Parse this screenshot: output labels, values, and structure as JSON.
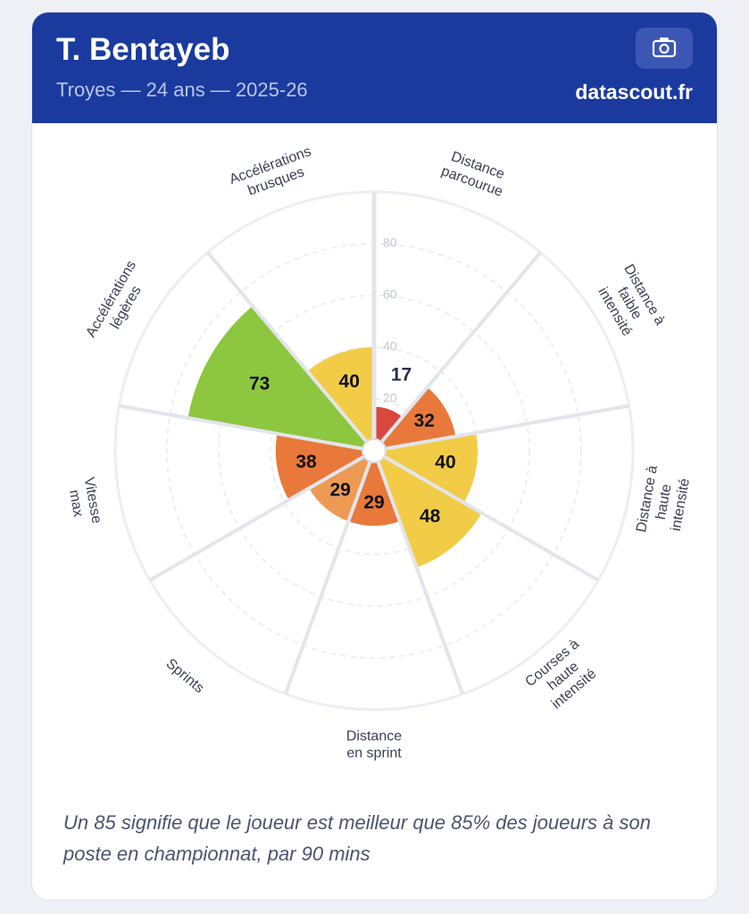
{
  "header": {
    "title": "T. Bentayeb",
    "subtitle": "Troyes — 24 ans — 2025-26",
    "brand": "datascout.fr"
  },
  "chart_data": {
    "type": "pizza",
    "categories": [
      [
        "Distance",
        "parcourue"
      ],
      [
        "Distance à",
        "faible",
        "intensité"
      ],
      [
        "Distance à",
        "haute",
        "intensité"
      ],
      [
        "Courses à",
        "haute",
        "intensité"
      ],
      [
        "Distance",
        "en sprint"
      ],
      [
        "Sprints"
      ],
      [
        "Vitesse",
        "max"
      ],
      [
        "Accélérations",
        "légères"
      ],
      [
        "Accélérations",
        "brusques"
      ]
    ],
    "values": [
      17,
      32,
      40,
      48,
      29,
      29,
      38,
      73,
      40
    ],
    "colors": [
      "#d9473f",
      "#e8793a",
      "#f2cc47",
      "#f2cc47",
      "#e8793a",
      "#ee9a54",
      "#e8793a",
      "#8dc63f",
      "#f2cc47"
    ],
    "ylim": [
      0,
      100
    ],
    "yticks": [
      20,
      40,
      60,
      80
    ],
    "grid": true
  },
  "footnote": "Un 85 signifie que le joueur est meilleur que 85% des joueurs à son poste en championnat, par 90 mins"
}
